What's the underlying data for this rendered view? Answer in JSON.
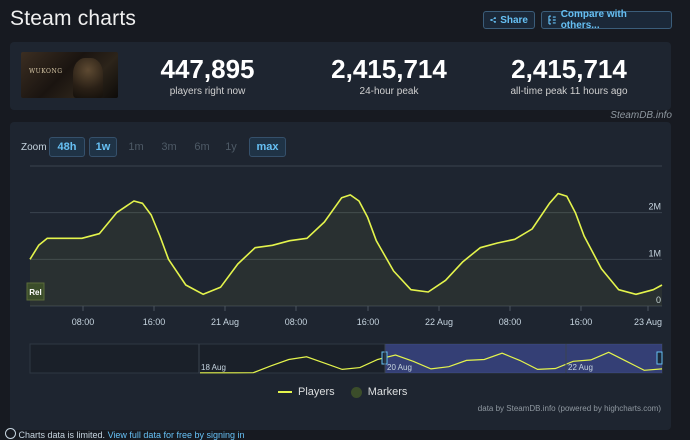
{
  "header": {
    "title": "Steam charts",
    "share_label": "Share",
    "compare_label": "Compare with others..."
  },
  "stats": [
    {
      "value": "447,895",
      "label": "players right now"
    },
    {
      "value": "2,415,714",
      "label": "24-hour peak"
    },
    {
      "value": "2,415,714",
      "label": "all-time peak 11 hours ago"
    }
  ],
  "game": {
    "logo_text": "WUKONG"
  },
  "source_label": "SteamDB.info",
  "zoom": {
    "label": "Zoom",
    "buttons": [
      {
        "label": "48h",
        "active": true
      },
      {
        "label": "1w",
        "active": true
      },
      {
        "label": "1m",
        "active": false
      },
      {
        "label": "3m",
        "active": false
      },
      {
        "label": "6m",
        "active": false
      },
      {
        "label": "1y",
        "active": false
      },
      {
        "label": "max",
        "active": true
      }
    ]
  },
  "chart_data": {
    "type": "line",
    "series": [
      {
        "name": "Players",
        "color": "#e4f44c",
        "x": [
          "2024-08-20 00:00",
          "2024-08-20 01:00",
          "2024-08-20 02:00",
          "2024-08-20 04:00",
          "2024-08-20 06:00",
          "2024-08-20 08:00",
          "2024-08-20 10:00",
          "2024-08-20 12:00",
          "2024-08-20 13:00",
          "2024-08-20 14:00",
          "2024-08-20 15:00",
          "2024-08-20 16:00",
          "2024-08-20 18:00",
          "2024-08-20 20:00",
          "2024-08-20 22:00",
          "2024-08-21 00:00",
          "2024-08-21 02:00",
          "2024-08-21 04:00",
          "2024-08-21 06:00",
          "2024-08-21 08:00",
          "2024-08-21 10:00",
          "2024-08-21 12:00",
          "2024-08-21 13:00",
          "2024-08-21 14:00",
          "2024-08-21 15:00",
          "2024-08-21 16:00",
          "2024-08-21 18:00",
          "2024-08-21 20:00",
          "2024-08-21 22:00",
          "2024-08-22 00:00",
          "2024-08-22 02:00",
          "2024-08-22 04:00",
          "2024-08-22 06:00",
          "2024-08-22 08:00",
          "2024-08-22 10:00",
          "2024-08-22 12:00",
          "2024-08-22 13:00",
          "2024-08-22 14:00",
          "2024-08-22 15:00",
          "2024-08-22 16:00",
          "2024-08-22 18:00",
          "2024-08-22 20:00",
          "2024-08-22 22:00",
          "2024-08-23 00:00",
          "2024-08-23 01:00"
        ],
        "values": [
          1000000,
          1300000,
          1450000,
          1450000,
          1450000,
          1550000,
          2000000,
          2250000,
          2200000,
          1950000,
          1500000,
          1000000,
          450000,
          250000,
          400000,
          900000,
          1250000,
          1300000,
          1400000,
          1450000,
          1800000,
          2320000,
          2380000,
          2250000,
          1900000,
          1400000,
          750000,
          350000,
          300000,
          550000,
          950000,
          1250000,
          1350000,
          1430000,
          1650000,
          2200000,
          2410000,
          2350000,
          2000000,
          1500000,
          800000,
          350000,
          250000,
          350000,
          450000
        ]
      },
      {
        "name": "Markers",
        "color": "#3b4d2a",
        "values": []
      }
    ],
    "yaxis": {
      "ticks": [
        0,
        1000000,
        2000000
      ],
      "tick_labels": [
        "0",
        "1M",
        "2M"
      ],
      "ylim": [
        0,
        3000000
      ]
    },
    "xaxis": {
      "tick_labels": [
        "08:00",
        "16:00",
        "21 Aug",
        "08:00",
        "16:00",
        "22 Aug",
        "08:00",
        "16:00",
        "23 Aug"
      ]
    },
    "markers": [
      {
        "label": "Rel"
      }
    ],
    "navigator": {
      "labels": [
        "18 Aug",
        "20 Aug",
        "22 Aug"
      ],
      "values": [
        20000,
        20000,
        20000,
        30000,
        800000,
        1500000,
        1800000,
        1100000,
        400000,
        600000,
        1500000,
        2000000,
        1300000,
        450000,
        700000,
        1400000,
        1500000,
        2200000,
        1400000,
        400000,
        500000,
        1300000,
        1450000,
        2300000,
        1300000,
        300000,
        450000
      ]
    },
    "grid": true,
    "legend": "bottom-center"
  },
  "legend": {
    "players_label": "Players",
    "markers_label": "Markers"
  },
  "credit": "data by SteamDB.info (powered by highcharts.com)",
  "footer": {
    "text": "Charts data is limited.",
    "link": "View full data for free by signing in"
  }
}
